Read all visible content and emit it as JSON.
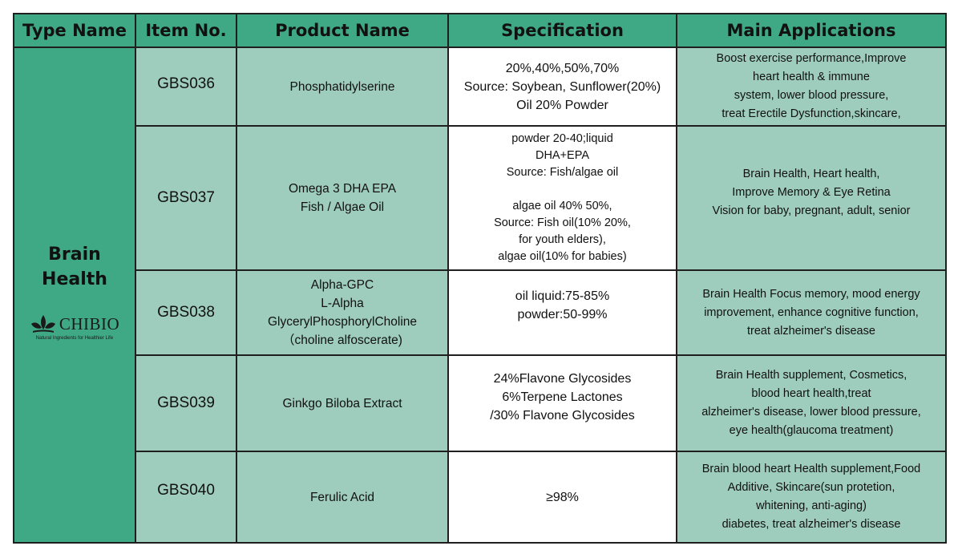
{
  "headers": {
    "type_name": "Type Name",
    "item_no": "Item No.",
    "product_name": "Product Name",
    "specification": "Specification",
    "main_applications": "Main Applications"
  },
  "type": {
    "label": "Brain\nHealth",
    "logo_name": "CHIBIO",
    "logo_tagline": "Natural Ingredients for Healthier Life"
  },
  "rows": [
    {
      "item_no": "GBS036",
      "product": "Phosphatidylserine",
      "spec": "20%,40%,50%,70%\nSource: Soybean, Sunflower(20%)\nOil 20% Powder",
      "applications": "Boost exercise performance,Improve\nheart health & immune\nsystem, lower blood pressure,\ntreat Erectile Dysfunction,skincare,"
    },
    {
      "item_no": "GBS037",
      "product": "Omega 3 DHA EPA\nFish / Algae Oil",
      "spec": "powder 20-40;liquid\nDHA+EPA\nSource: Fish/algae oil\n\nalgae oil 40% 50%,\nSource: Fish oil(10% 20%,\nfor youth elders),\nalgae oil(10% for babies)",
      "applications": "Brain Health, Heart health,\nImprove Memory & Eye Retina\nVision for baby, pregnant, adult, senior"
    },
    {
      "item_no": "GBS038",
      "product": "Alpha-GPC\nL-Alpha\nGlycerylPhosphorylCholine\n（choline alfoscerate)",
      "spec": "oil liquid:75-85%\npowder:50-99%",
      "applications": "Brain Health Focus memory, mood energy\nimprovement, enhance cognitive function,\ntreat alzheimer's disease"
    },
    {
      "item_no": "GBS039",
      "product": "Ginkgo Biloba Extract",
      "spec": "24%Flavone Glycosides\n6%Terpene Lactones\n/30% Flavone Glycosides",
      "applications": "Brain Health supplement, Cosmetics,\nblood heart health,treat\nalzheimer's disease, lower blood pressure,\neye health(glaucoma treatment)"
    },
    {
      "item_no": "GBS040",
      "product": "Ferulic Acid",
      "spec": "≥98%",
      "applications": "Brain blood heart Health supplement,Food\nAdditive, Skincare(sun protetion,\nwhitening, anti-aging)\ndiabetes, treat alzheimer's disease"
    }
  ]
}
